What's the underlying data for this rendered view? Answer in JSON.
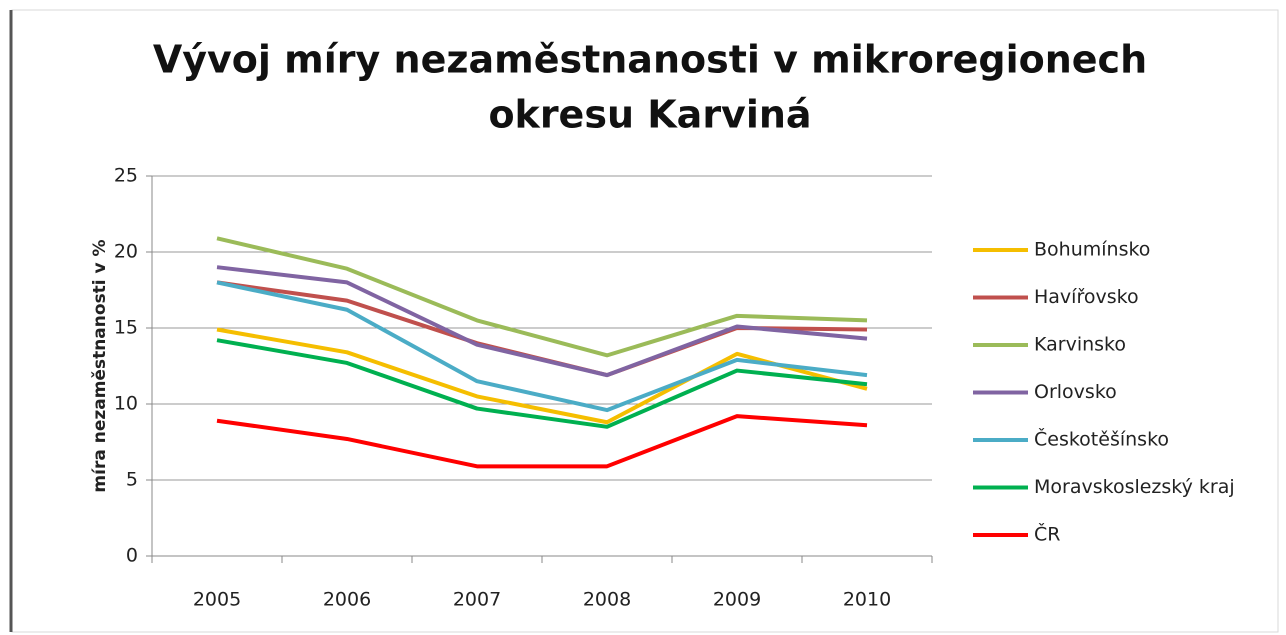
{
  "chart_data": {
    "type": "line",
    "title": [
      "Vývoj míry nezaměstnanosti v mikroregionech",
      "okresu Karviná"
    ],
    "y_label": "míra nezaměstnanosti  v %",
    "categories": [
      "2005",
      "2006",
      "2007",
      "2008",
      "2009",
      "2010"
    ],
    "series": [
      {
        "name": "Bohumínsko",
        "color": "#f5be00",
        "values": [
          14.9,
          13.4,
          10.5,
          8.8,
          13.3,
          11.0
        ]
      },
      {
        "name": "Havířovsko",
        "color": "#c0504d",
        "values": [
          18.0,
          16.8,
          14.0,
          11.9,
          15.0,
          14.9
        ]
      },
      {
        "name": "Karvinsko",
        "color": "#9bbb59",
        "values": [
          20.9,
          18.9,
          15.5,
          13.2,
          15.8,
          15.5
        ]
      },
      {
        "name": "Orlovsko",
        "color": "#8064a2",
        "values": [
          19.0,
          18.0,
          13.9,
          11.9,
          15.1,
          14.3
        ]
      },
      {
        "name": "Českotěšínsko",
        "color": "#4bacc6",
        "values": [
          18.0,
          16.2,
          11.5,
          9.6,
          12.9,
          11.9
        ]
      },
      {
        "name": "Moravskoslezský kraj",
        "color": "#00b050",
        "values": [
          14.2,
          12.7,
          9.7,
          8.5,
          12.2,
          11.3
        ]
      },
      {
        "name": "ČR",
        "color": "#ff0000",
        "values": [
          8.9,
          7.7,
          5.9,
          5.9,
          9.2,
          8.6
        ]
      }
    ],
    "ylim": [
      0,
      25
    ],
    "yticks": [
      0,
      5,
      10,
      15,
      20,
      25
    ],
    "grid": true,
    "legend": "right"
  }
}
